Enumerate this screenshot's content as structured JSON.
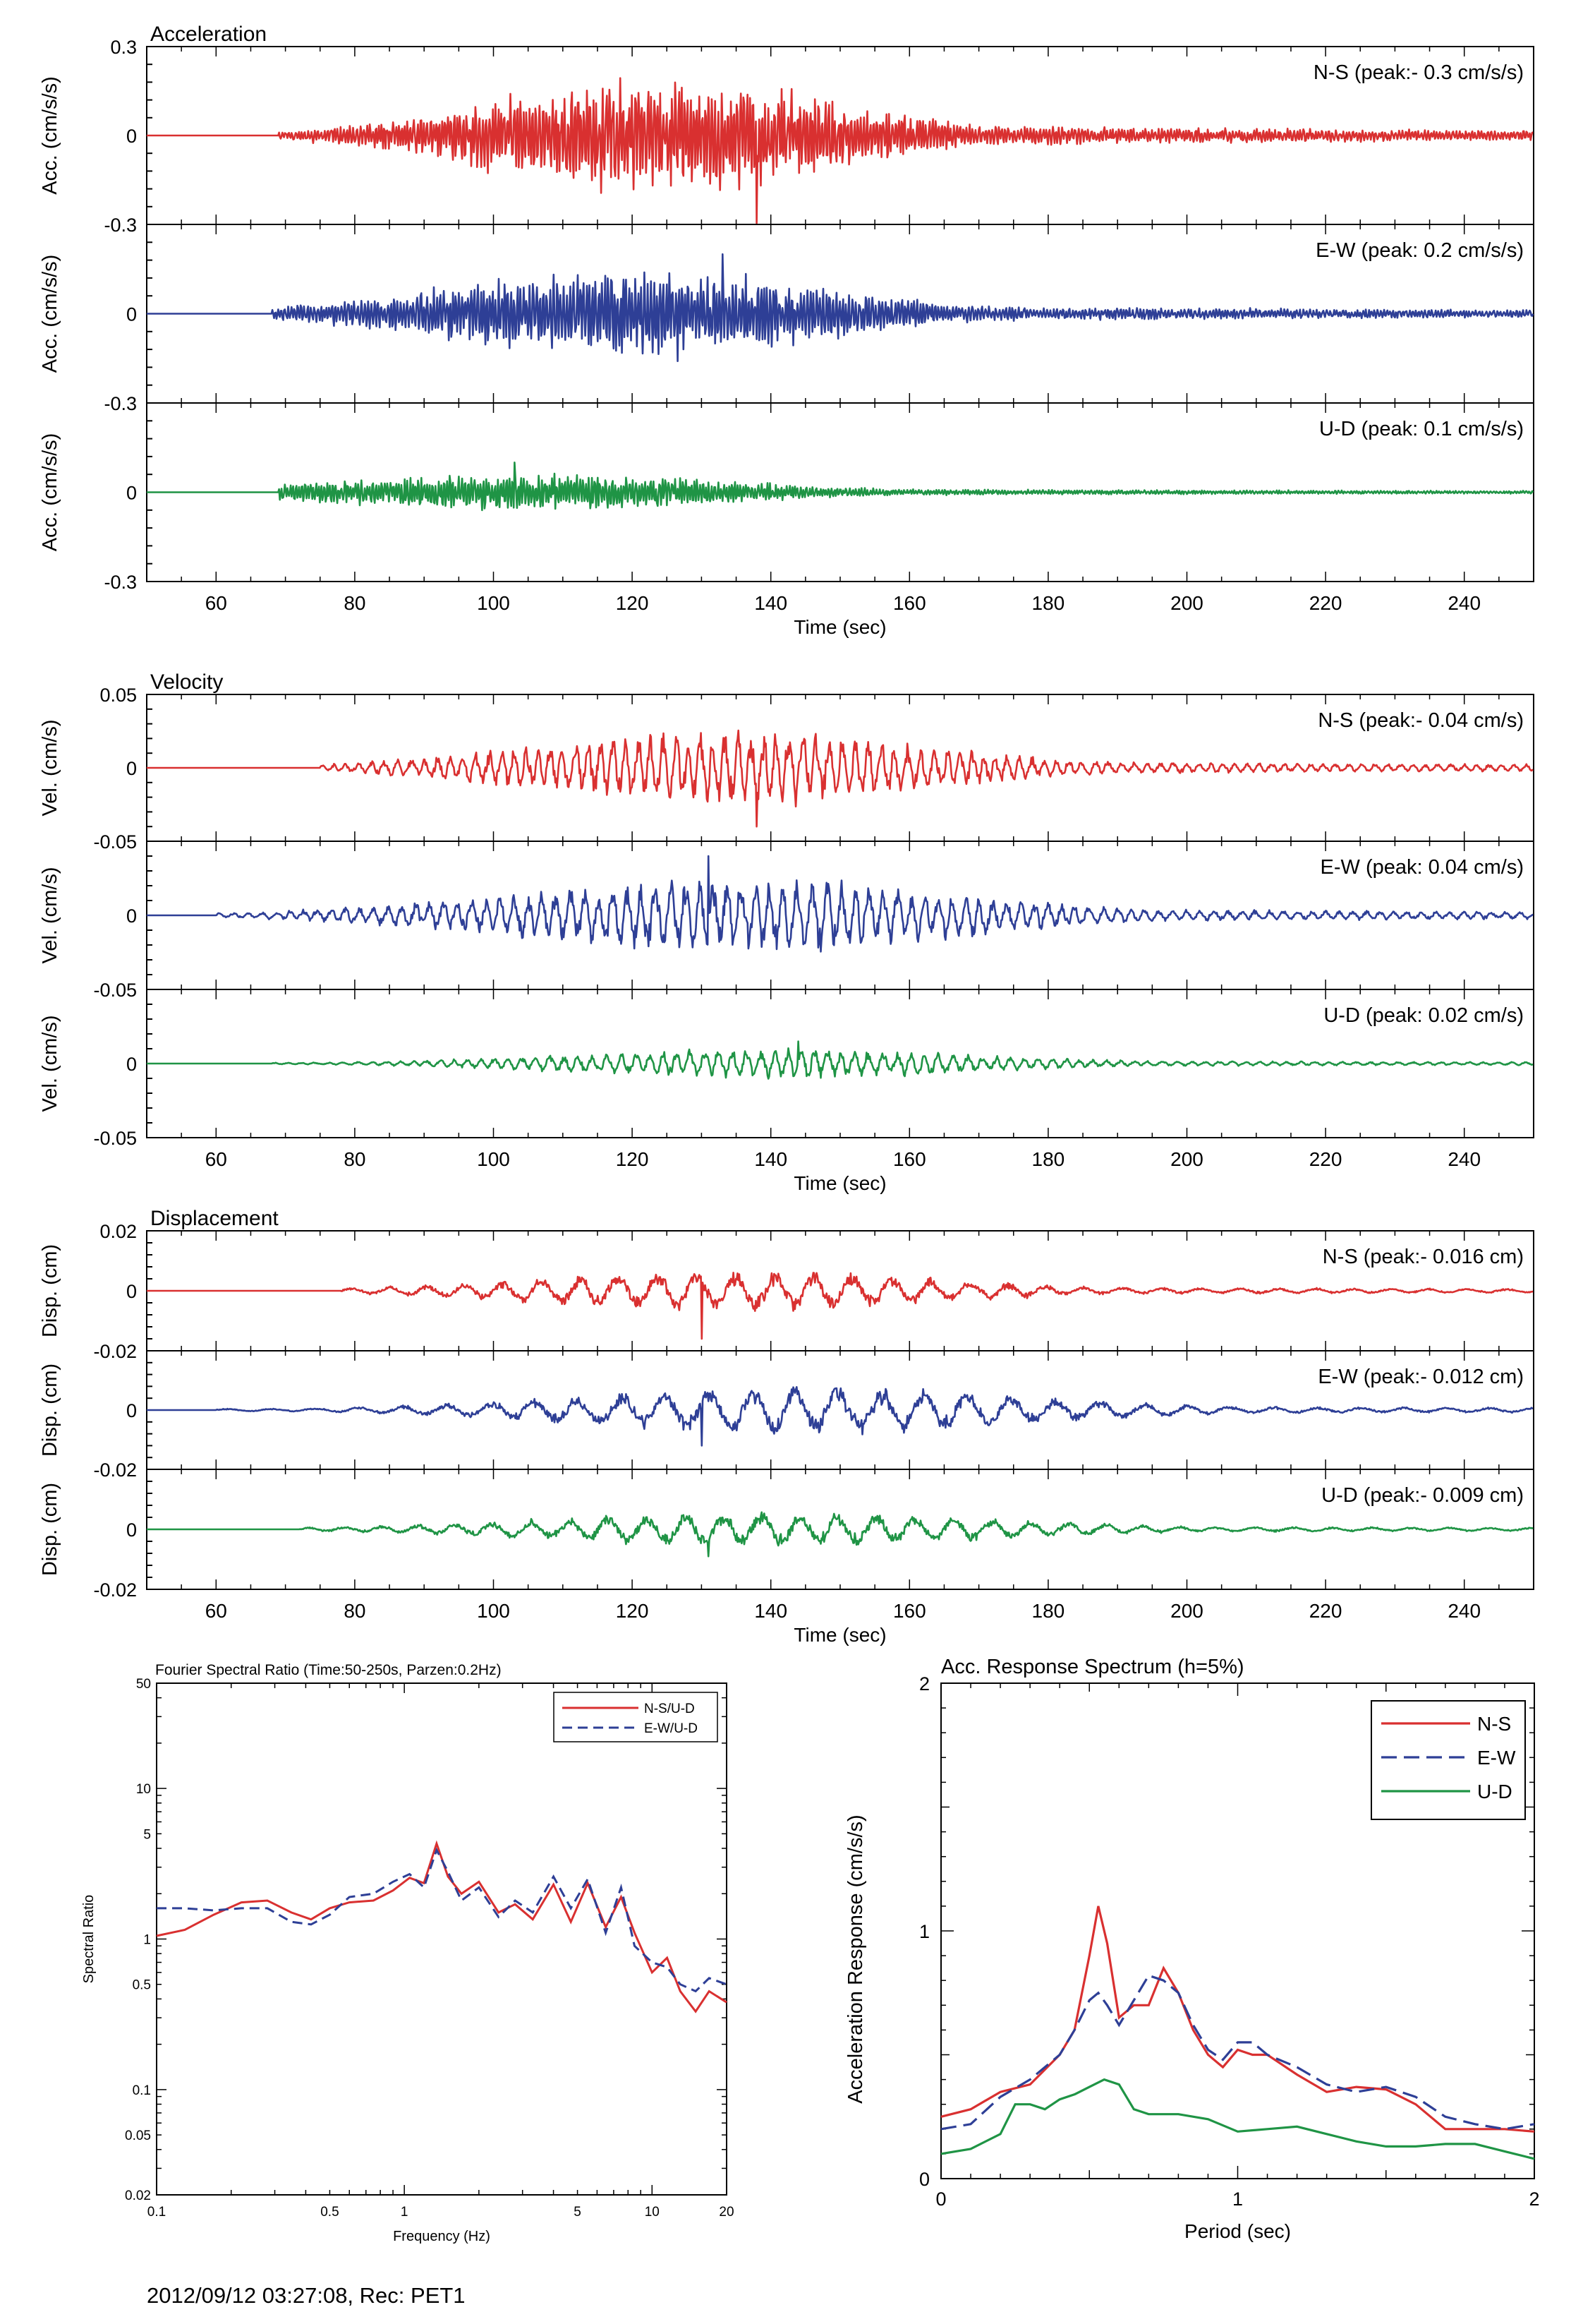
{
  "footer": "2012/09/12 03:27:08, Rec: PET1",
  "colors": {
    "ns": "#d93030",
    "ew": "#2e3f96",
    "ud": "#1f9445",
    "axis": "#000000"
  },
  "time_panels": [
    {
      "group_title": "Acceleration",
      "ylabel": "Acc. (cm/s/s)",
      "yticks": [
        "0.3",
        "0",
        "-0.3"
      ],
      "ylim": [
        -0.3,
        0.3
      ],
      "xlabel": "Time (sec)",
      "xticks": [
        60,
        80,
        100,
        120,
        140,
        160,
        180,
        200,
        220,
        240
      ],
      "xlim": [
        50,
        250
      ],
      "traces": [
        {
          "label": "N-S (peak:- 0.3 cm/s/s)",
          "component": "ns",
          "onset": 69,
          "peak_t": 138,
          "peak": -0.3,
          "envelope_center": 125,
          "envelope_width": 35,
          "amp": 0.17,
          "freq": 2.2
        },
        {
          "label": "E-W (peak: 0.2 cm/s/s)",
          "component": "ew",
          "onset": 68,
          "peak_t": 133,
          "peak": 0.2,
          "envelope_center": 120,
          "envelope_width": 38,
          "amp": 0.13,
          "freq": 2.2
        },
        {
          "label": "U-D (peak: 0.1 cm/s/s)",
          "component": "ud",
          "onset": 69,
          "peak_t": 103,
          "peak": 0.1,
          "envelope_center": 105,
          "envelope_width": 40,
          "amp": 0.055,
          "freq": 2.4
        }
      ]
    },
    {
      "group_title": "Velocity",
      "ylabel": "Vel. (cm/s)",
      "yticks": [
        "0.05",
        "0",
        "-0.05"
      ],
      "ylim": [
        -0.05,
        0.05
      ],
      "xlabel": "Time (sec)",
      "xticks": [
        60,
        80,
        100,
        120,
        140,
        160,
        180,
        200,
        220,
        240
      ],
      "xlim": [
        50,
        250
      ],
      "traces": [
        {
          "label": "N-S (peak:- 0.04 cm/s)",
          "component": "ns",
          "onset": 75,
          "peak_t": 138,
          "peak": -0.04,
          "envelope_center": 135,
          "envelope_width": 40,
          "amp": 0.022,
          "freq": 0.55
        },
        {
          "label": "E-W (peak: 0.04 cm/s)",
          "component": "ew",
          "onset": 60,
          "peak_t": 131,
          "peak": 0.04,
          "envelope_center": 135,
          "envelope_width": 45,
          "amp": 0.022,
          "freq": 0.5
        },
        {
          "label": "U-D (peak: 0.02 cm/s)",
          "component": "ud",
          "onset": 68,
          "peak_t": 144,
          "peak": 0.015,
          "envelope_center": 140,
          "envelope_width": 40,
          "amp": 0.009,
          "freq": 0.5
        }
      ]
    },
    {
      "group_title": "Displacement",
      "ylabel": "Disp. (cm)",
      "yticks": [
        "0.02",
        "0",
        "-0.02"
      ],
      "ylim": [
        -0.02,
        0.02
      ],
      "xlabel": "Time (sec)",
      "xticks": [
        60,
        80,
        100,
        120,
        140,
        160,
        180,
        200,
        220,
        240
      ],
      "xlim": [
        50,
        250
      ],
      "traces": [
        {
          "label": "N-S (peak:- 0.016 cm)",
          "component": "ns",
          "onset": 78,
          "peak_t": 130,
          "peak": -0.016,
          "envelope_center": 135,
          "envelope_width": 40,
          "amp": 0.006,
          "freq": 0.18
        },
        {
          "label": "E-W (peak:- 0.012 cm)",
          "component": "ew",
          "onset": 60,
          "peak_t": 130,
          "peak": -0.012,
          "envelope_center": 145,
          "envelope_width": 45,
          "amp": 0.007,
          "freq": 0.16
        },
        {
          "label": "U-D (peak:- 0.009 cm)",
          "component": "ud",
          "onset": 72,
          "peak_t": 131,
          "peak": -0.009,
          "envelope_center": 140,
          "envelope_width": 45,
          "amp": 0.005,
          "freq": 0.18
        }
      ]
    }
  ],
  "chart_data": [
    {
      "type": "line",
      "title": "Fourier Spectral Ratio (Time:50-250s, Parzen:0.2Hz)",
      "xlabel": "Frequency (Hz)",
      "ylabel": "Spectral Ratio",
      "xscale": "log",
      "yscale": "log",
      "xlim": [
        0.1,
        20
      ],
      "ylim": [
        0.02,
        50
      ],
      "xticks": [
        "0.1",
        "0.5",
        "1",
        "5",
        "10",
        "20"
      ],
      "xtick_values": [
        0.1,
        0.5,
        1,
        5,
        10,
        20
      ],
      "yticks": [
        "50",
        "10",
        "5",
        "1",
        "0.5",
        "0.1",
        "0.05",
        "0.02"
      ],
      "ytick_values": [
        50,
        10,
        5,
        1,
        0.5,
        0.1,
        0.05,
        0.02
      ],
      "legend_position": "top-right",
      "series": [
        {
          "name": "N-S/U-D",
          "component": "ns",
          "dash": "solid",
          "x": [
            0.1,
            0.13,
            0.17,
            0.22,
            0.28,
            0.35,
            0.42,
            0.5,
            0.6,
            0.75,
            0.9,
            1.05,
            1.2,
            1.35,
            1.5,
            1.7,
            2.0,
            2.4,
            2.8,
            3.3,
            4.0,
            4.7,
            5.5,
            6.5,
            7.5,
            8.5,
            10,
            11.5,
            13,
            15,
            17,
            20
          ],
          "y": [
            1.05,
            1.15,
            1.45,
            1.75,
            1.8,
            1.5,
            1.35,
            1.6,
            1.75,
            1.8,
            2.1,
            2.55,
            2.35,
            4.3,
            2.6,
            2.0,
            2.4,
            1.5,
            1.7,
            1.35,
            2.3,
            1.3,
            2.35,
            1.2,
            1.9,
            1.1,
            0.6,
            0.75,
            0.45,
            0.33,
            0.45,
            0.38
          ]
        },
        {
          "name": "E-W/U-D",
          "component": "ew",
          "dash": "dashed",
          "x": [
            0.1,
            0.13,
            0.17,
            0.22,
            0.28,
            0.35,
            0.42,
            0.5,
            0.6,
            0.75,
            0.9,
            1.05,
            1.2,
            1.35,
            1.5,
            1.7,
            2.0,
            2.4,
            2.8,
            3.3,
            4.0,
            4.7,
            5.5,
            6.5,
            7.5,
            8.5,
            10,
            11.5,
            13,
            15,
            17,
            20
          ],
          "y": [
            1.6,
            1.6,
            1.55,
            1.6,
            1.6,
            1.3,
            1.25,
            1.45,
            1.9,
            2.0,
            2.4,
            2.7,
            2.2,
            3.9,
            2.8,
            1.8,
            2.2,
            1.4,
            1.8,
            1.5,
            2.6,
            1.6,
            2.5,
            1.1,
            2.2,
            0.9,
            0.7,
            0.65,
            0.5,
            0.45,
            0.55,
            0.5
          ]
        }
      ]
    },
    {
      "type": "line",
      "title": "Acc. Response Spectrum (h=5%)",
      "xlabel": "Period (sec)",
      "ylabel": "Acceleration Response (cm/s/s)",
      "xlim": [
        0,
        2
      ],
      "ylim": [
        0,
        2
      ],
      "xticks": [
        "0",
        "1",
        "2"
      ],
      "xtick_values": [
        0,
        1,
        2
      ],
      "yticks": [
        "0",
        "1",
        "2"
      ],
      "ytick_values": [
        0,
        1,
        2
      ],
      "legend_position": "top-right",
      "series": [
        {
          "name": "N-S",
          "component": "ns",
          "dash": "solid",
          "x": [
            0.0,
            0.1,
            0.2,
            0.3,
            0.4,
            0.45,
            0.5,
            0.53,
            0.56,
            0.6,
            0.65,
            0.7,
            0.75,
            0.8,
            0.85,
            0.9,
            0.95,
            1.0,
            1.05,
            1.1,
            1.2,
            1.3,
            1.4,
            1.5,
            1.6,
            1.7,
            1.8,
            1.9,
            2.0
          ],
          "y": [
            0.25,
            0.28,
            0.35,
            0.38,
            0.5,
            0.6,
            0.9,
            1.1,
            0.95,
            0.65,
            0.7,
            0.7,
            0.85,
            0.75,
            0.6,
            0.5,
            0.45,
            0.52,
            0.5,
            0.5,
            0.42,
            0.35,
            0.37,
            0.36,
            0.3,
            0.2,
            0.2,
            0.2,
            0.19
          ]
        },
        {
          "name": "E-W",
          "component": "ew",
          "dash": "dashed",
          "x": [
            0.0,
            0.1,
            0.2,
            0.3,
            0.4,
            0.45,
            0.5,
            0.53,
            0.56,
            0.6,
            0.65,
            0.7,
            0.75,
            0.8,
            0.85,
            0.9,
            0.95,
            1.0,
            1.05,
            1.1,
            1.2,
            1.3,
            1.4,
            1.5,
            1.6,
            1.7,
            1.8,
            1.9,
            2.0
          ],
          "y": [
            0.2,
            0.22,
            0.33,
            0.4,
            0.5,
            0.6,
            0.72,
            0.75,
            0.7,
            0.62,
            0.72,
            0.82,
            0.8,
            0.75,
            0.62,
            0.52,
            0.48,
            0.55,
            0.55,
            0.5,
            0.45,
            0.38,
            0.35,
            0.37,
            0.33,
            0.25,
            0.22,
            0.2,
            0.22
          ]
        },
        {
          "name": "U-D",
          "component": "ud",
          "dash": "solid",
          "x": [
            0.0,
            0.1,
            0.2,
            0.25,
            0.3,
            0.35,
            0.4,
            0.45,
            0.5,
            0.55,
            0.6,
            0.65,
            0.7,
            0.8,
            0.9,
            1.0,
            1.1,
            1.2,
            1.3,
            1.4,
            1.5,
            1.6,
            1.7,
            1.8,
            1.9,
            2.0
          ],
          "y": [
            0.1,
            0.12,
            0.18,
            0.3,
            0.3,
            0.28,
            0.32,
            0.34,
            0.37,
            0.4,
            0.38,
            0.28,
            0.26,
            0.26,
            0.24,
            0.19,
            0.2,
            0.21,
            0.18,
            0.15,
            0.13,
            0.13,
            0.14,
            0.14,
            0.11,
            0.08
          ]
        }
      ]
    }
  ]
}
